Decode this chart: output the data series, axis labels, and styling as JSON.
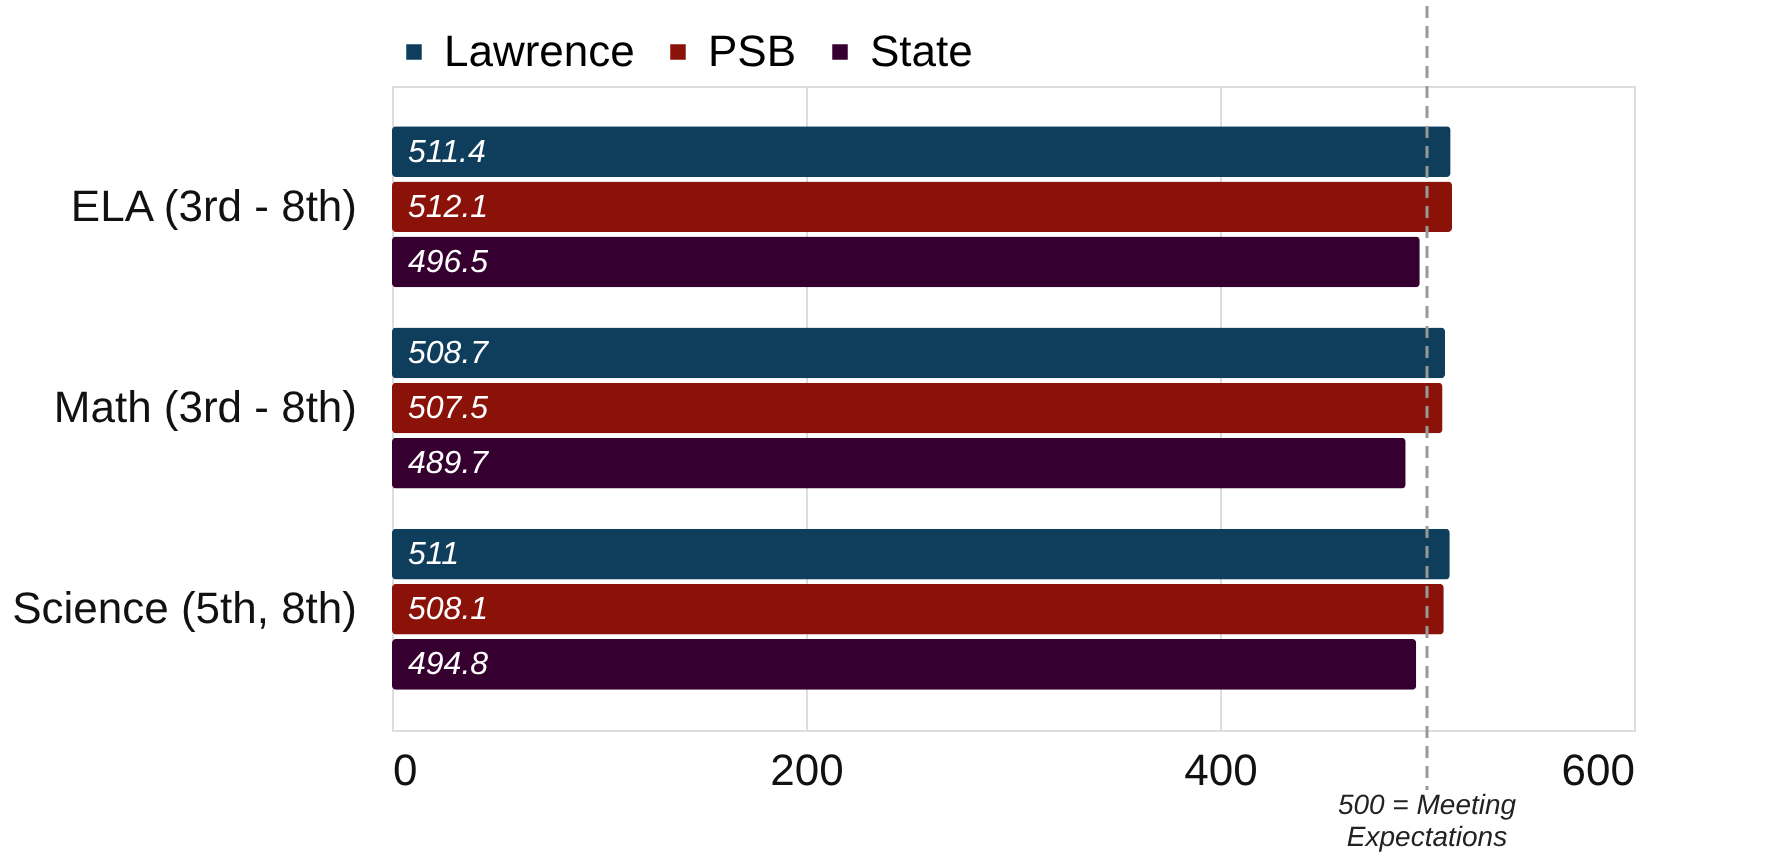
{
  "chart_data": {
    "type": "bar",
    "orientation": "horizontal",
    "categories": [
      "ELA (3rd - 8th)",
      "Math (3rd - 8th)",
      "Science (5th, 8th)"
    ],
    "series": [
      {
        "name": "Lawrence",
        "color": "#0f3d5c",
        "values": [
          511.4,
          508.7,
          511
        ]
      },
      {
        "name": "PSB",
        "color": "#8b1209",
        "values": [
          512.1,
          507.5,
          508.1
        ]
      },
      {
        "name": "State",
        "color": "#35002f",
        "values": [
          496.5,
          489.7,
          494.8
        ]
      }
    ],
    "xlim": [
      0,
      600
    ],
    "xticks": [
      0,
      200,
      400,
      600
    ],
    "grid": "x",
    "legend": "top",
    "data_labels": true,
    "ref_lines": [
      {
        "axis": "x",
        "value": 500,
        "label": "500 = Meeting Expectations",
        "color": "#999999",
        "line_style": "dashed"
      }
    ]
  }
}
